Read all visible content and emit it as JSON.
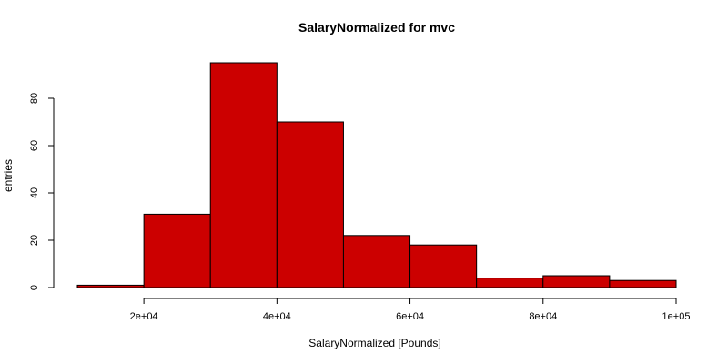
{
  "chart_data": {
    "type": "bar",
    "title": "SalaryNormalized for mvc",
    "xlabel": "SalaryNormalized [Pounds]",
    "ylabel": "entries",
    "bins": [
      {
        "x0": 10000,
        "x1": 20000,
        "count": 1
      },
      {
        "x0": 20000,
        "x1": 30000,
        "count": 31
      },
      {
        "x0": 30000,
        "x1": 40000,
        "count": 95
      },
      {
        "x0": 40000,
        "x1": 50000,
        "count": 70
      },
      {
        "x0": 50000,
        "x1": 60000,
        "count": 22
      },
      {
        "x0": 60000,
        "x1": 70000,
        "count": 18
      },
      {
        "x0": 70000,
        "x1": 80000,
        "count": 4
      },
      {
        "x0": 80000,
        "x1": 90000,
        "count": 5
      },
      {
        "x0": 90000,
        "x1": 100000,
        "count": 3
      }
    ],
    "xlim": [
      10000,
      100000
    ],
    "ylim": [
      0,
      95
    ],
    "x_ticks": [
      {
        "value": 20000,
        "label": "2e+04"
      },
      {
        "value": 40000,
        "label": "4e+04"
      },
      {
        "value": 60000,
        "label": "6e+04"
      },
      {
        "value": 80000,
        "label": "8e+04"
      },
      {
        "value": 100000,
        "label": "1e+05"
      }
    ],
    "y_ticks": [
      {
        "value": 0,
        "label": "0"
      },
      {
        "value": 20,
        "label": "20"
      },
      {
        "value": 40,
        "label": "40"
      },
      {
        "value": 60,
        "label": "60"
      },
      {
        "value": 80,
        "label": "80"
      }
    ],
    "grid": false,
    "legend": "none",
    "bar_color": "#cc0000"
  }
}
